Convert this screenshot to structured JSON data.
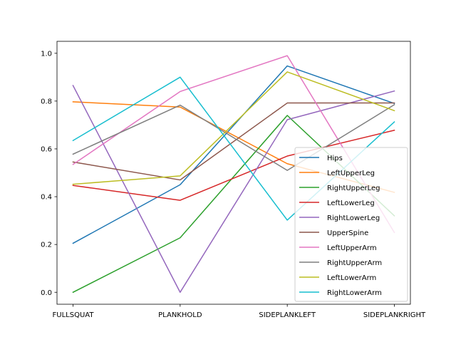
{
  "chart_data": {
    "type": "line",
    "title": "",
    "xlabel": "",
    "ylabel": "",
    "categories": [
      "FULLSQUAT",
      "PLANKHOLD",
      "SIDEPLANKLEFT",
      "SIDEPLANKRIGHT"
    ],
    "ylim": [
      -0.05,
      1.05
    ],
    "yticks": [
      0.0,
      0.2,
      0.4,
      0.6,
      0.8,
      1.0
    ],
    "ytick_labels": [
      "0.0",
      "0.2",
      "0.4",
      "0.6",
      "0.8",
      "1.0"
    ],
    "grid": false,
    "legend_position": "lower-right",
    "series": [
      {
        "name": "Hips",
        "color": "#1f77b4",
        "values": [
          0.205,
          0.45,
          0.947,
          0.79
        ]
      },
      {
        "name": "LeftUpperLeg",
        "color": "#ff7f0e",
        "values": [
          0.797,
          0.775,
          0.538,
          0.418
        ]
      },
      {
        "name": "RightUpperLeg",
        "color": "#2ca02c",
        "values": [
          0.0,
          0.228,
          0.74,
          0.32
        ]
      },
      {
        "name": "LeftLowerLeg",
        "color": "#d62728",
        "values": [
          0.447,
          0.385,
          0.57,
          0.678
        ]
      },
      {
        "name": "RightLowerLeg",
        "color": "#9467bd",
        "values": [
          0.865,
          0.0,
          0.722,
          0.842
        ]
      },
      {
        "name": "UpperSpine",
        "color": "#8c564b",
        "values": [
          0.545,
          0.47,
          0.792,
          0.792
        ]
      },
      {
        "name": "LeftUpperArm",
        "color": "#e377c2",
        "values": [
          0.535,
          0.84,
          0.99,
          0.25
        ]
      },
      {
        "name": "RightUpperArm",
        "color": "#7f7f7f",
        "values": [
          0.578,
          0.783,
          0.51,
          0.785
        ]
      },
      {
        "name": "LeftLowerArm",
        "color": "#bcbd22",
        "values": [
          0.452,
          0.487,
          0.922,
          0.76
        ]
      },
      {
        "name": "RightLowerArm",
        "color": "#17becf",
        "values": [
          0.635,
          0.9,
          0.302,
          0.713
        ]
      }
    ]
  }
}
